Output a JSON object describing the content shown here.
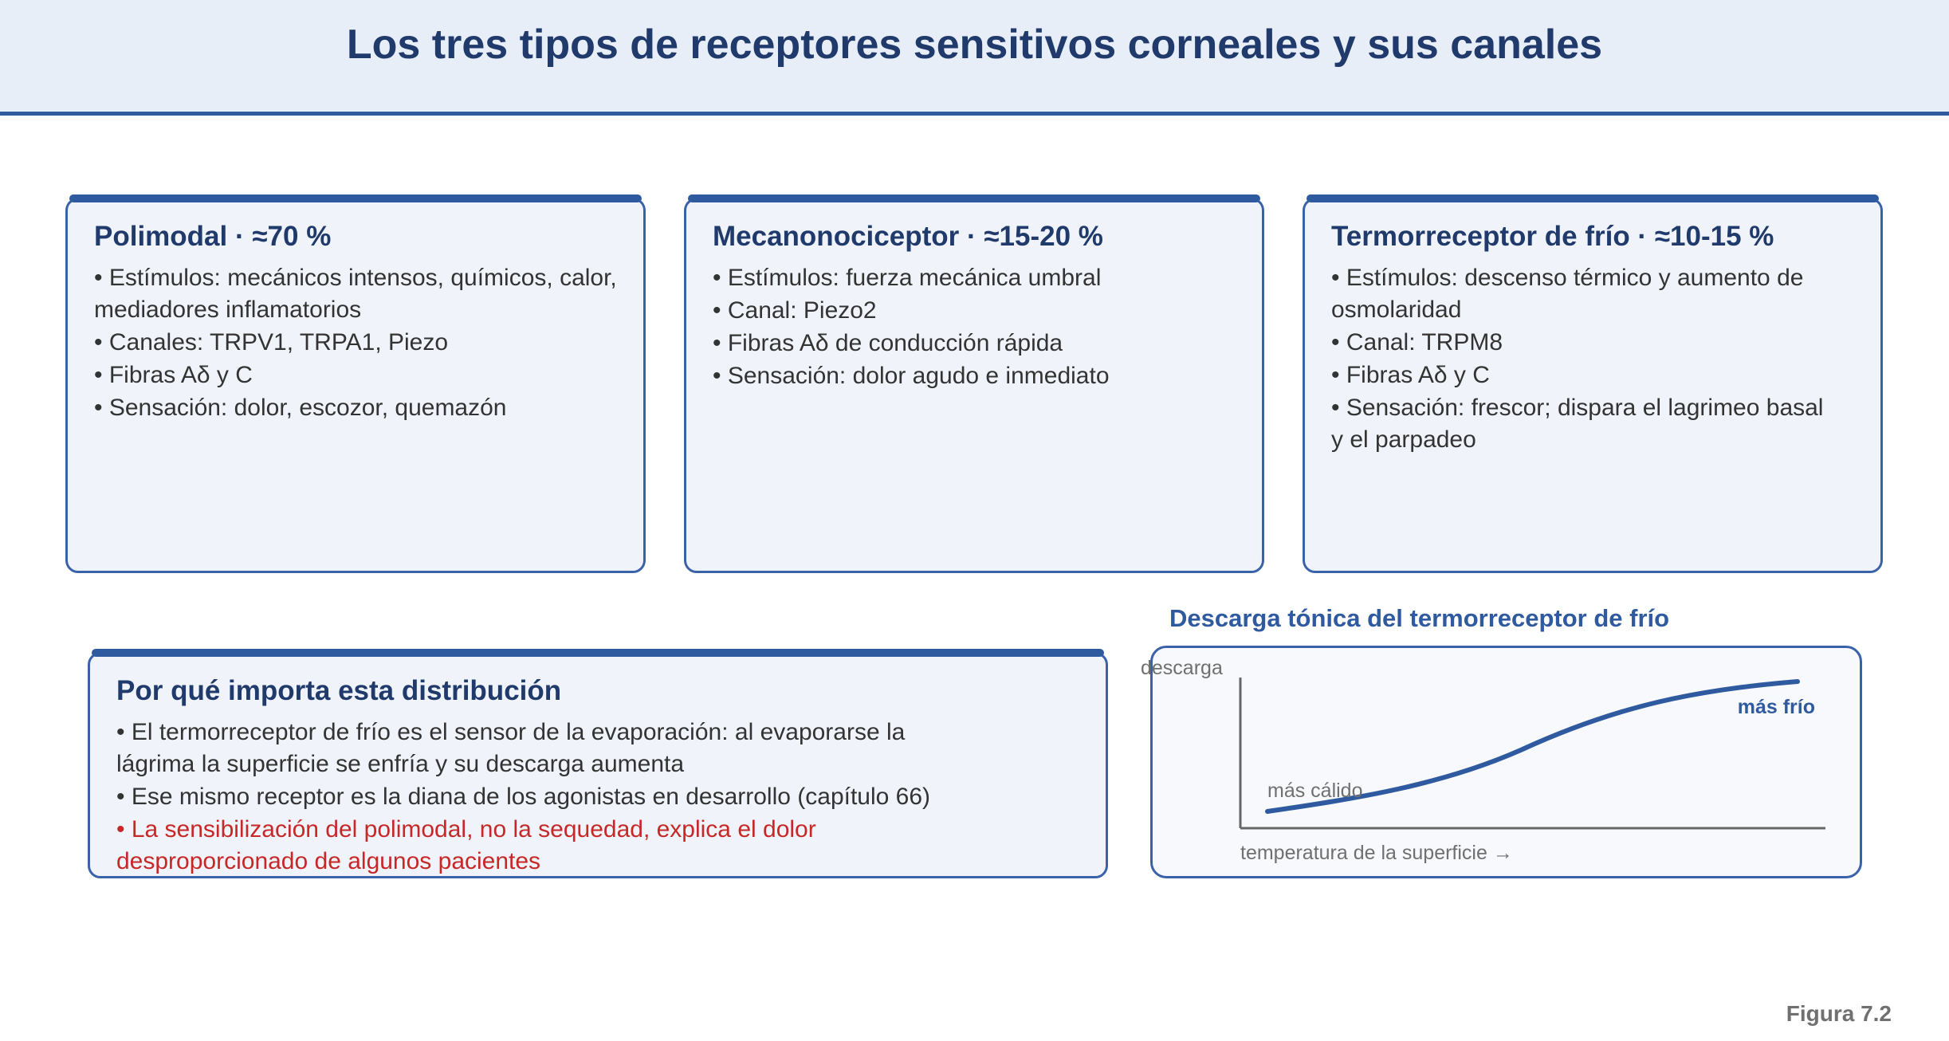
{
  "title": "Los tres tipos de receptores sensitivos corneales y sus canales",
  "cards": [
    {
      "heading": "Polimodal · ≈70 %",
      "items": [
        "• Estímulos: mecánicos intensos, químicos, calor, mediadores inflamatorios",
        "• Canales: TRPV1, TRPA1, Piezo",
        "• Fibras Aδ y C",
        "• Sensación: dolor, escozor, quemazón"
      ]
    },
    {
      "heading": "Mecanonociceptor · ≈15-20 %",
      "items": [
        "• Estímulos: fuerza mecánica umbral",
        "• Canal: Piezo2",
        "• Fibras Aδ de conducción rápida",
        "• Sensación: dolor agudo e inmediato"
      ]
    },
    {
      "heading": "Termorreceptor de frío · ≈10-15 %",
      "items": [
        "• Estímulos: descenso térmico y aumento de osmolaridad",
        "• Canal: TRPM8",
        "• Fibras Aδ y C",
        "• Sensación: frescor; dispara el lagrimeo basal y el parpadeo"
      ]
    }
  ],
  "importance": {
    "heading": "Por qué importa esta distribución",
    "items": [
      "• El termorreceptor de frío es el sensor de la evaporación: al evaporarse la lágrima la superficie se enfría y su descarga aumenta",
      "• Ese mismo receptor es la diana de los agonistas en desarrollo (capítulo 66)"
    ],
    "highlight": "• La sensibilización del polimodal, no la sequedad, explica el dolor desproporcionado de algunos pacientes"
  },
  "chart_data": {
    "type": "line",
    "title": "Descarga tónica del termorreceptor de frío",
    "ylabel": "descarga",
    "xlabel": "temperatura de la superficie →",
    "annotations": {
      "start": "más cálido",
      "end": "más frío"
    },
    "colors": {
      "curve": "#2f5aa0",
      "axis": "#666666"
    }
  },
  "figure_label": "Figura 7.2"
}
